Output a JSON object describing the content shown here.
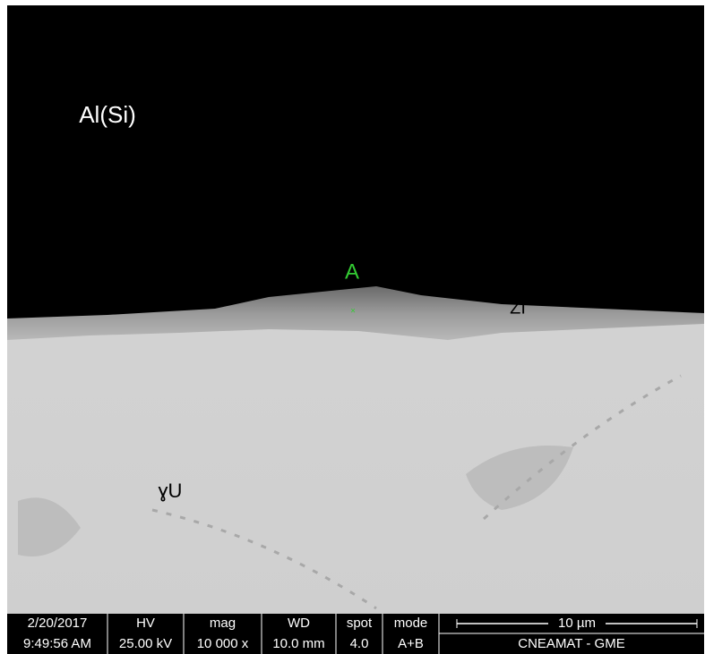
{
  "labels": {
    "matrix": "Al(Si)",
    "point": "A",
    "interlayer": "ZI",
    "phase": "ɣU"
  },
  "databar": {
    "headers": [
      "2/20/2017",
      "HV",
      "mag",
      "WD",
      "spot",
      "mode"
    ],
    "values": [
      "9:49:56 AM",
      "25.00 kV",
      "10 000 x",
      "10.0 mm",
      "4.0",
      "A+B"
    ],
    "scale": "10 µm",
    "lab": "CNEAMAT - GME"
  }
}
